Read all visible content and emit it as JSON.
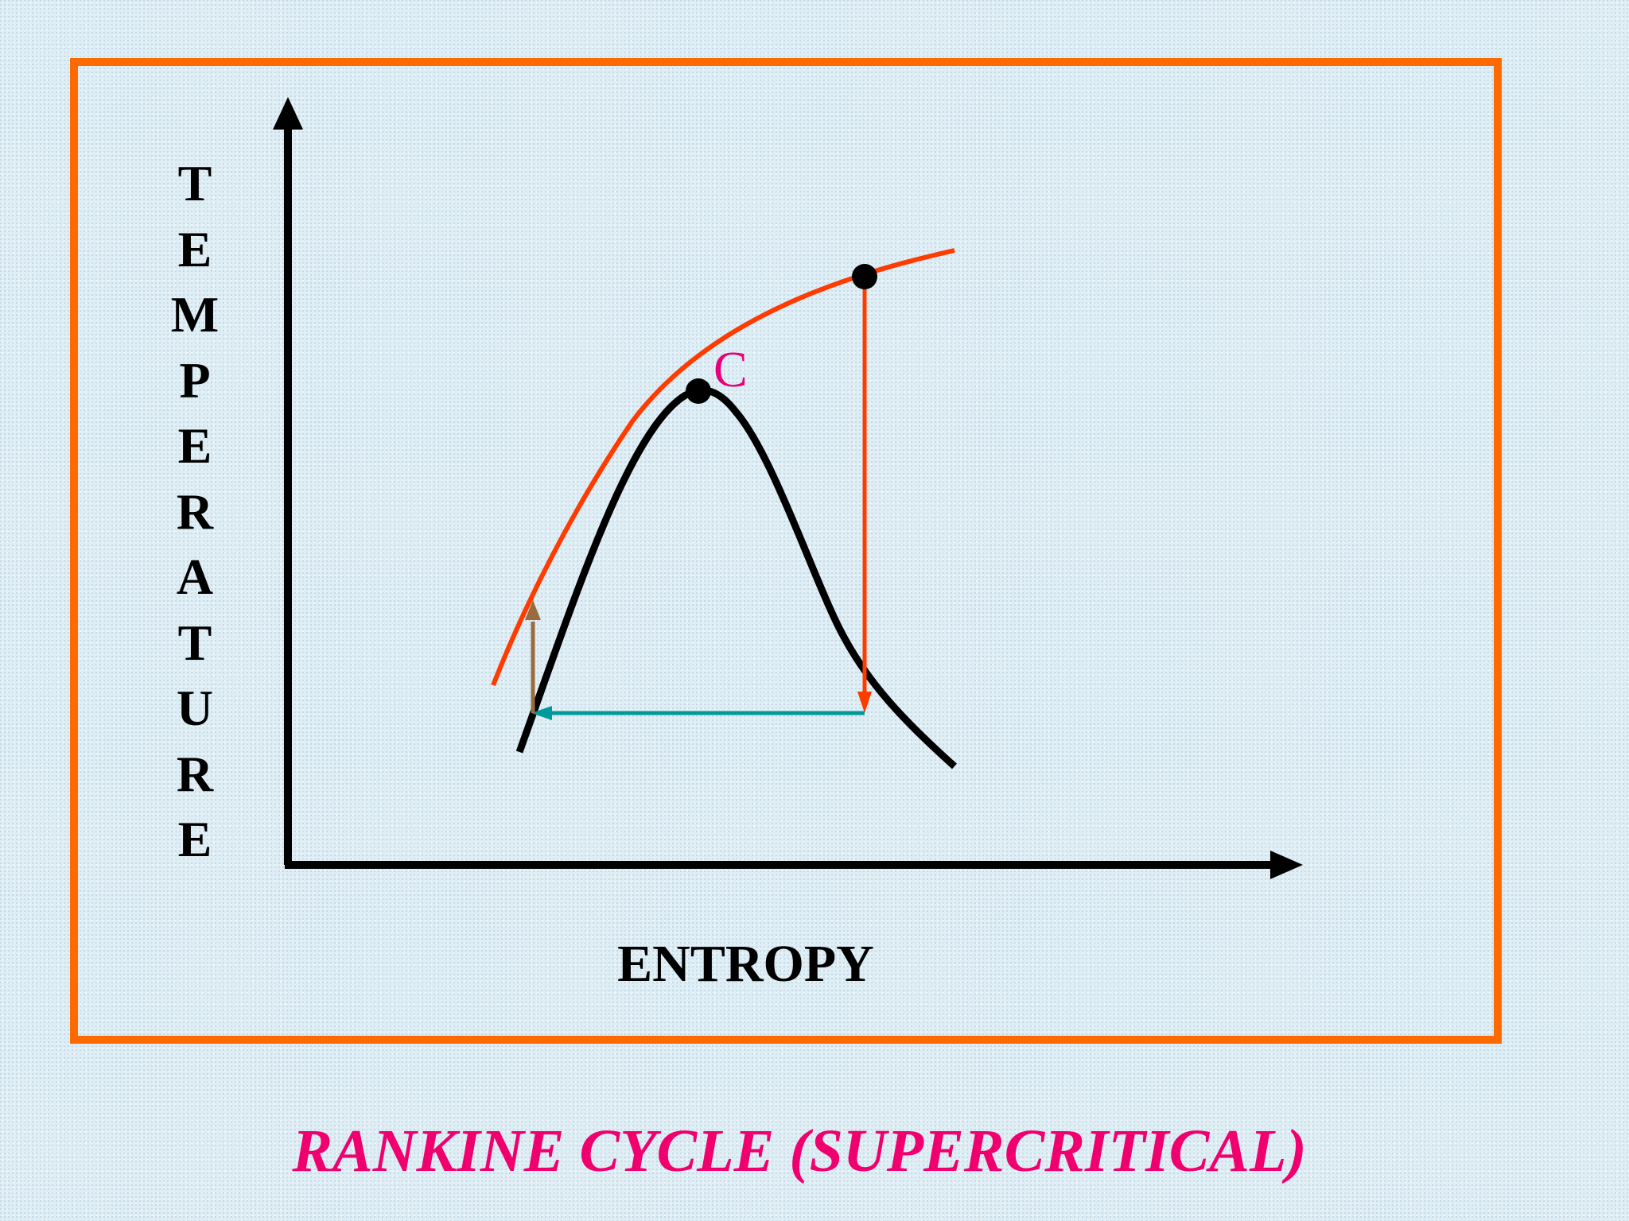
{
  "title": "RANKINE CYCLE (SUPERCRITICAL)",
  "axes": {
    "x_label": "ENTROPY",
    "y_label": "TEMPERATURE"
  },
  "point_labels": {
    "critical_point": "C"
  },
  "colors": {
    "frame": "#ff6a00",
    "title": "#f0006e",
    "point_label": "#e8007a",
    "saturation_dome": "#000000",
    "isobar_line": "#ff3b00",
    "expansion_line": "#ff3b00",
    "condensation_line": "#009999",
    "pump_line": "#9a6b3c",
    "axes": "#000000"
  }
}
